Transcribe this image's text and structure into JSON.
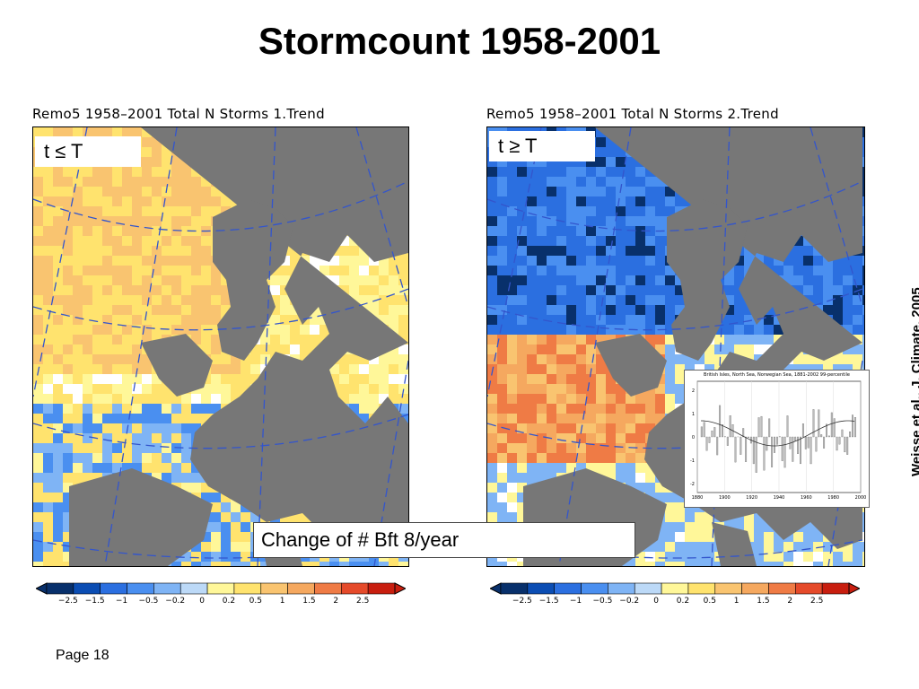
{
  "slide": {
    "title": "Stormcount 1958-2001",
    "page_label": "Page 18",
    "citation": "Weisse  et al., J. Climate, 2005"
  },
  "maps": [
    {
      "header": "Remo5 1958–2001 Total N Storms 1.Trend",
      "label": "t ≤ T"
    },
    {
      "header": "Remo5 1958–2001 Total N Storms 2.Trend",
      "label": "t ≥ T"
    }
  ],
  "annotation": "Change of # Bft 8/year",
  "colorbar": {
    "ticks": [
      "−2.5",
      "−1.5",
      "−1",
      "−0.5",
      "−0.2",
      "0",
      "0.2",
      "0.5",
      "1",
      "1.5",
      "2",
      "2.5"
    ],
    "colors": [
      "#08306b",
      "#0b4db3",
      "#2b6fe0",
      "#4a8ff0",
      "#7fb4f5",
      "#bcd9f7",
      "#fff799",
      "#ffe36e",
      "#f9c470",
      "#f5a85f",
      "#ef7b45",
      "#e54a2a",
      "#c81e0f"
    ]
  },
  "inset": {
    "title": "British Isles, North Sea, Norwegian Sea, 1881-2002  99-percentile",
    "x_ticks": [
      "1880",
      "1900",
      "1920",
      "1940",
      "1960",
      "1980",
      "2000"
    ],
    "y_ticks": [
      "2",
      "1",
      "0",
      "-1",
      "-2"
    ]
  }
}
